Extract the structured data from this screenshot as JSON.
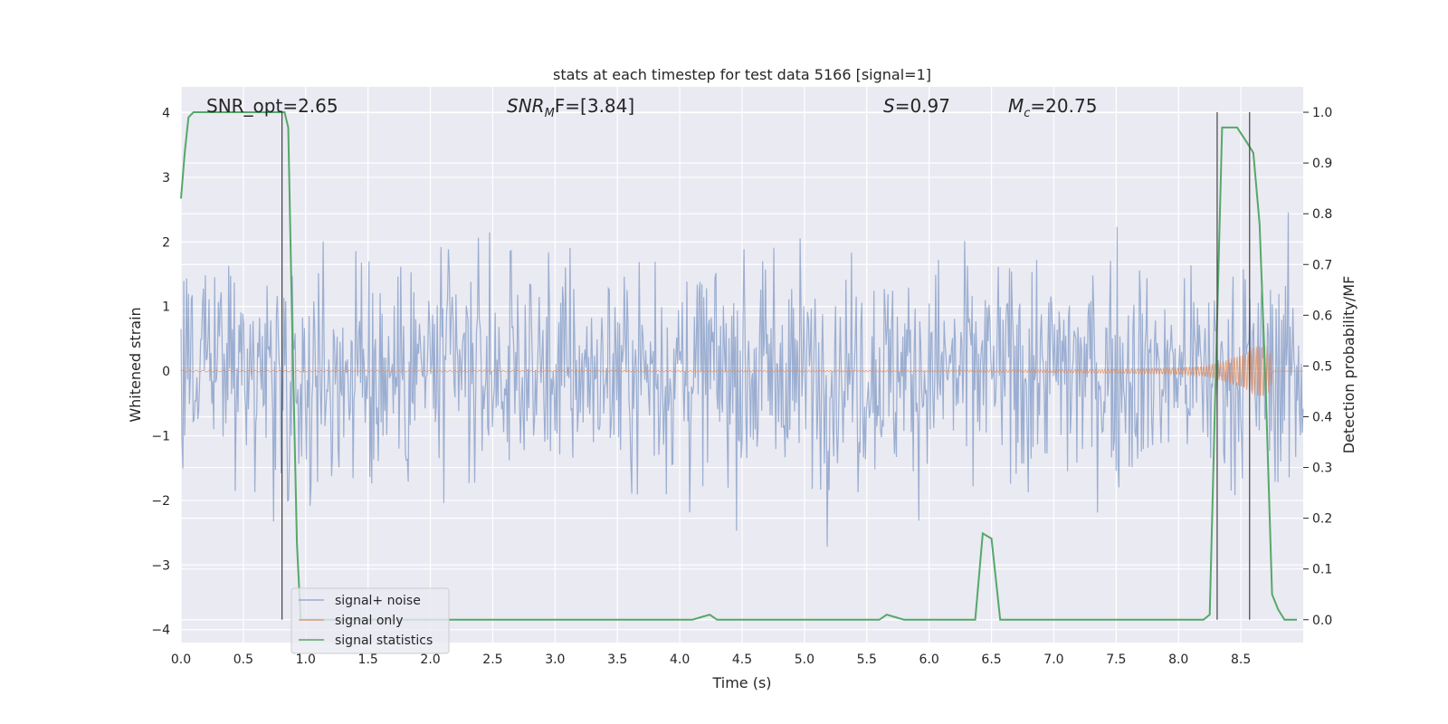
{
  "chart_data": {
    "type": "line",
    "title": "stats at each timestep for test data 5166 [signal=1]",
    "xlabel": "Time (s)",
    "ylabel": "Whitened strain",
    "ylabel_right": "Detection probability/MF",
    "xlim": [
      0.0,
      9.0
    ],
    "ylim": [
      -4.2,
      4.4
    ],
    "ylim_right": [
      -0.045,
      1.05
    ],
    "x_ticks": [
      "0.0",
      "0.5",
      "1.0",
      "1.5",
      "2.0",
      "2.5",
      "3.0",
      "3.5",
      "4.0",
      "4.5",
      "5.0",
      "5.5",
      "6.0",
      "6.5",
      "7.0",
      "7.5",
      "8.0",
      "8.5"
    ],
    "y_ticks": [
      "-4",
      "-3",
      "-2",
      "-1",
      "0",
      "1",
      "2",
      "3",
      "4"
    ],
    "y_ticks_right": [
      "0.0",
      "0.1",
      "0.2",
      "0.3",
      "0.4",
      "0.5",
      "0.6",
      "0.7",
      "0.8",
      "0.9",
      "1.0"
    ],
    "grid": true,
    "legend_position": "lower-left",
    "annotations": {
      "snr_opt": "SNR_opt=2.65",
      "snr_mf_base": "SNR",
      "snr_mf_sub": "M",
      "snr_mf_rest": "F=[3.84]",
      "s_base": "S",
      "s_rest": "=0.97",
      "mc_base": "M",
      "mc_sub": "c",
      "mc_rest": "=20.75"
    },
    "vlines_s": [
      0.81,
      8.31,
      8.57
    ],
    "series": [
      {
        "name": "signal+ noise",
        "color": "#4c72b0",
        "note_envelope": {
          "noise_sigma": 0.85,
          "n_samples": 1200
        }
      },
      {
        "name": "signal only",
        "color": "#dd8452",
        "x": [
          6.0,
          6.5,
          7.0,
          7.5,
          7.8,
          8.0,
          8.2,
          8.3,
          8.4,
          8.5,
          8.6,
          8.7,
          8.75
        ],
        "amplitude": [
          0.01,
          0.015,
          0.02,
          0.03,
          0.04,
          0.05,
          0.08,
          0.12,
          0.18,
          0.26,
          0.36,
          0.45,
          0.2
        ]
      },
      {
        "name": "signal statistics",
        "color": "#55a868",
        "axis": "right",
        "x": [
          0.0,
          0.03,
          0.06,
          0.1,
          0.15,
          0.2,
          0.3,
          0.4,
          0.5,
          0.6,
          0.7,
          0.8,
          0.83,
          0.86,
          0.89,
          0.93,
          0.96,
          1.0,
          4.1,
          4.17,
          4.24,
          4.3,
          5.6,
          5.66,
          5.73,
          5.8,
          6.37,
          6.43,
          6.5,
          6.57,
          8.2,
          8.25,
          8.3,
          8.35,
          8.4,
          8.47,
          8.55,
          8.6,
          8.65,
          8.7,
          8.75,
          8.8,
          8.85,
          8.9,
          8.95
        ],
        "y": [
          0.83,
          0.92,
          0.99,
          1.0,
          1.0,
          1.0,
          1.0,
          1.0,
          1.0,
          1.0,
          1.0,
          1.0,
          1.0,
          0.97,
          0.6,
          0.15,
          0.0,
          0.0,
          0.0,
          0.005,
          0.01,
          0.0,
          0.0,
          0.01,
          0.005,
          0.0,
          0.0,
          0.17,
          0.16,
          0.0,
          0.0,
          0.01,
          0.5,
          0.97,
          0.97,
          0.97,
          0.94,
          0.92,
          0.78,
          0.45,
          0.05,
          0.02,
          0.0,
          0.0,
          0.0
        ]
      }
    ]
  }
}
